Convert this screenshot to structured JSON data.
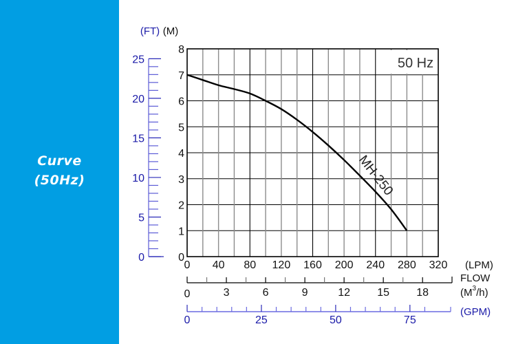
{
  "sidebar": {
    "title_line1": "Curve",
    "title_line2": "(50Hz)",
    "background": "#019ee3"
  },
  "chart": {
    "freq_label": "50 Hz",
    "curve_label": "MH-250",
    "y_unit_m": "(M)",
    "y_unit_ft": "(FT)",
    "x_unit_lpm": "(LPM)",
    "flow_label": "FLOW",
    "x_unit_m3h_prefix": "(M",
    "x_unit_m3h_sup": "3",
    "x_unit_m3h_suffix": "/h)",
    "x_unit_gpm": "(GPM)",
    "colors": {
      "curve": "#000000",
      "ft_scale": "#1a1aa8",
      "gpm_scale": "#1a1aa8",
      "grid_dark": "#000000",
      "grid_light": "#8c8c8c"
    }
  },
  "chart_data": {
    "type": "line",
    "title": "Curve (50Hz)",
    "annotation": "50 Hz",
    "xlabel": "FLOW (LPM)",
    "ylabel": "(M)",
    "xlim": [
      0,
      320
    ],
    "ylim": [
      0,
      8
    ],
    "grid": true,
    "x_ticks": [
      0,
      40,
      80,
      120,
      160,
      200,
      240,
      280,
      320
    ],
    "y_ticks": [
      0,
      1,
      2,
      3,
      4,
      5,
      6,
      7,
      8
    ],
    "secondary_axes": {
      "ft": {
        "ticks": [
          0,
          5,
          10,
          15,
          20,
          25
        ],
        "range": [
          0,
          26.2
        ]
      },
      "m3h": {
        "ticks": [
          0,
          3,
          6,
          9,
          12,
          15,
          18
        ],
        "range": [
          0,
          19.2
        ]
      },
      "gpm": {
        "ticks": [
          0,
          25,
          50,
          75
        ],
        "range": [
          0,
          84.5
        ]
      }
    },
    "series": [
      {
        "name": "MH-250",
        "x": [
          0,
          20,
          40,
          60,
          80,
          100,
          120,
          140,
          160,
          180,
          200,
          220,
          240,
          260,
          280
        ],
        "values": [
          7.0,
          6.8,
          6.6,
          6.45,
          6.28,
          6.0,
          5.68,
          5.27,
          4.8,
          4.28,
          3.72,
          3.12,
          2.5,
          1.82,
          1.0
        ]
      }
    ]
  }
}
